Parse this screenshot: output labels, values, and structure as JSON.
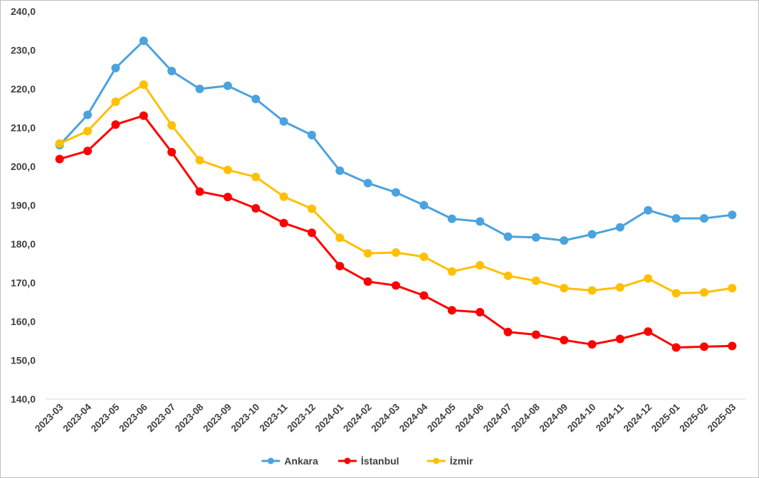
{
  "chart_data": {
    "type": "line",
    "title": "",
    "xlabel": "",
    "ylabel": "",
    "ylim": [
      140,
      240
    ],
    "y_ticks": [
      "140,0",
      "150,0",
      "160,0",
      "170,0",
      "180,0",
      "190,0",
      "200,0",
      "210,0",
      "220,0",
      "230,0",
      "240,0"
    ],
    "grid": false,
    "legend_position": "bottom",
    "categories": [
      "2023-03",
      "2023-04",
      "2023-05",
      "2023-06",
      "2023-07",
      "2023-08",
      "2023-09",
      "2023-10",
      "2023-11",
      "2023-12",
      "2024-01",
      "2024-02",
      "2024-03",
      "2024-04",
      "2024-05",
      "2024-06",
      "2024-07",
      "2024-08",
      "2024-09",
      "2024-10",
      "2024-11",
      "2024-12",
      "2025-01",
      "2025-02",
      "2025-03"
    ],
    "series": [
      {
        "name": "Ankara",
        "color": "#4aa3df",
        "values": [
          205.5,
          213.3,
          225.4,
          232.4,
          224.6,
          220.0,
          220.8,
          217.4,
          211.6,
          208.1,
          198.9,
          195.7,
          193.3,
          190.0,
          186.5,
          185.8,
          181.9,
          181.7,
          180.9,
          182.5,
          184.3,
          188.7,
          186.6,
          186.6,
          187.5
        ]
      },
      {
        "name": "İstanbul",
        "color": "#ff0000",
        "values": [
          201.9,
          204.0,
          210.8,
          213.1,
          203.7,
          193.5,
          192.1,
          189.2,
          185.4,
          182.9,
          174.3,
          170.3,
          169.3,
          166.7,
          162.9,
          162.4,
          157.3,
          156.6,
          155.2,
          154.1,
          155.5,
          157.4,
          153.3,
          153.5,
          153.7
        ]
      },
      {
        "name": "İzmir",
        "color": "#ffc000",
        "values": [
          205.9,
          209.1,
          216.7,
          221.1,
          210.6,
          201.6,
          199.1,
          197.3,
          192.2,
          189.1,
          181.6,
          177.6,
          177.8,
          176.7,
          172.9,
          174.5,
          171.8,
          170.5,
          168.6,
          168.0,
          168.8,
          171.1,
          167.3,
          167.5,
          168.6
        ]
      }
    ]
  }
}
